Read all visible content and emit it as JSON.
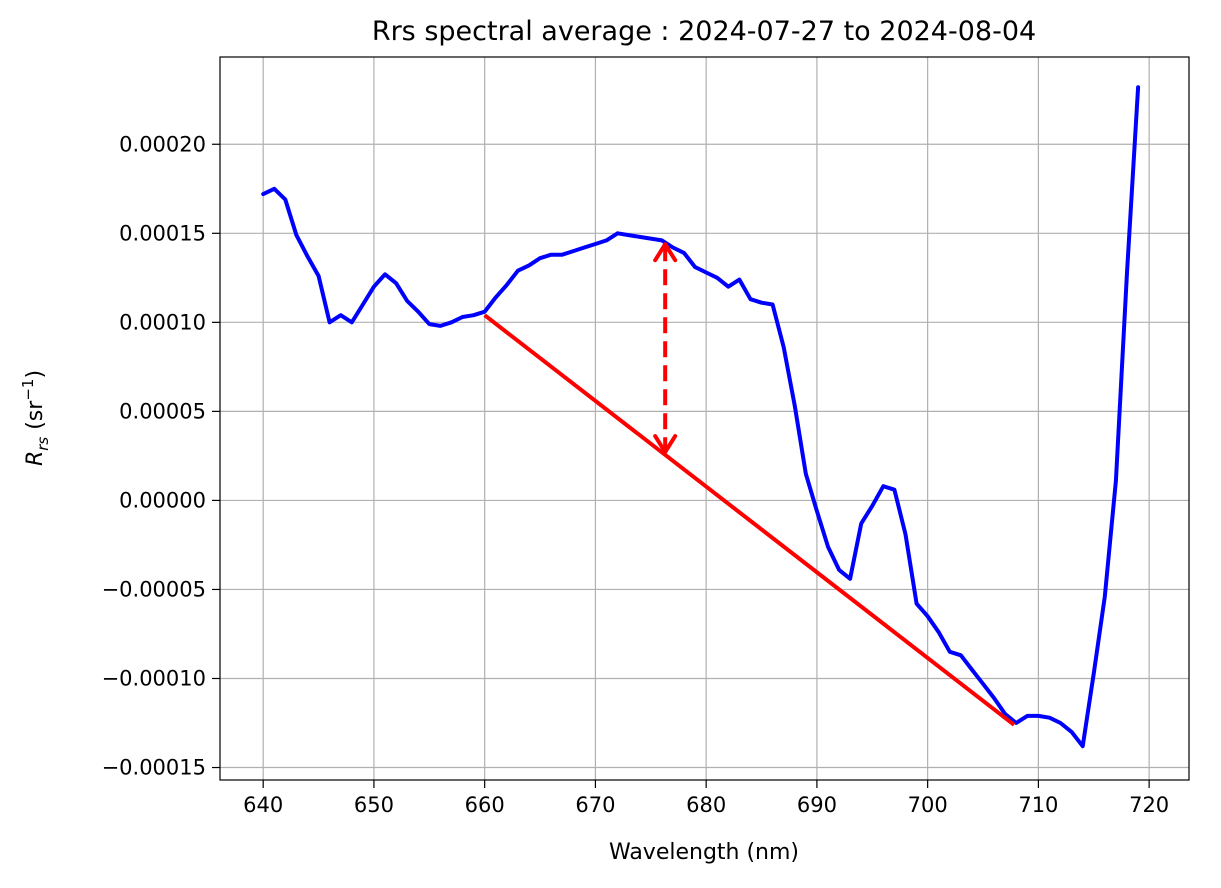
{
  "chart_data": {
    "type": "line",
    "title": "Rrs spectral average : 2024-07-27 to 2024-08-04",
    "xlabel": "Wavelength (nm)",
    "ylabel": {
      "main": "R",
      "sub": "rs",
      "unit_open": " (sr",
      "unit_exp": "−1",
      "unit_close": ")"
    },
    "xlim": [
      636.1,
      723.6
    ],
    "ylim": [
      -0.000157,
      0.000249
    ],
    "x_ticks": [
      640,
      650,
      660,
      670,
      680,
      690,
      700,
      710,
      720
    ],
    "x_tick_labels": [
      "640",
      "650",
      "660",
      "670",
      "680",
      "690",
      "700",
      "710",
      "720"
    ],
    "y_ticks": [
      0.0002,
      0.00015,
      0.0001,
      5e-05,
      0.0,
      -5e-05,
      -0.0001,
      -0.00015
    ],
    "y_tick_labels": [
      "0.00020",
      "0.00015",
      "0.00010",
      "0.00005",
      "0.00000",
      "−0.00005",
      "−0.00010",
      "−0.00015"
    ],
    "grid": true,
    "series": [
      {
        "color": "#0000ff",
        "x": [
          640,
          641,
          642,
          643,
          644,
          645,
          646,
          647,
          648,
          649,
          650,
          651,
          652,
          653,
          654,
          655,
          656,
          657,
          658,
          659,
          660,
          661,
          662,
          663,
          664,
          665,
          666,
          667,
          668,
          669,
          670,
          671,
          672,
          673,
          674,
          675,
          676,
          677,
          678,
          679,
          680,
          681,
          682,
          683,
          684,
          685,
          686,
          687,
          688,
          689,
          690,
          691,
          692,
          693,
          694,
          695,
          696,
          697,
          698,
          699,
          700,
          701,
          702,
          703,
          704,
          705,
          706,
          707,
          708,
          709,
          710,
          711,
          712,
          713,
          714,
          715,
          716,
          717,
          718,
          719
        ],
        "y": [
          0.000172,
          0.000175,
          0.000169,
          0.000149,
          0.000137,
          0.000126,
          0.0001,
          0.000104,
          0.0001,
          0.00011,
          0.00012,
          0.000127,
          0.000122,
          0.000112,
          0.000106,
          9.9e-05,
          9.8e-05,
          0.0001,
          0.000103,
          0.000104,
          0.000106,
          0.000114,
          0.000121,
          0.000129,
          0.000132,
          0.000136,
          0.000138,
          0.000138,
          0.00014,
          0.000142,
          0.000144,
          0.000146,
          0.00015,
          0.000149,
          0.000148,
          0.000147,
          0.000146,
          0.000142,
          0.000139,
          0.000131,
          0.000128,
          0.000125,
          0.00012,
          0.000124,
          0.000113,
          0.000111,
          0.00011,
          8.6e-05,
          5.3e-05,
          1.5e-05,
          -6e-06,
          -2.6e-05,
          -3.9e-05,
          -4.4e-05,
          -1.3e-05,
          -3e-06,
          8e-06,
          6e-06,
          -1.9e-05,
          -5.8e-05,
          -6.5e-05,
          -7.4e-05,
          -8.5e-05,
          -8.7e-05,
          -9.5e-05,
          -0.000103,
          -0.000111,
          -0.00012,
          -0.000125,
          -0.000121,
          -0.000121,
          -0.000122,
          -0.000125,
          -0.00013,
          -0.000138,
          -9.7e-05,
          -5.4e-05,
          1.1e-05,
          0.000128,
          0.000232
        ]
      }
    ],
    "annotations": [
      {
        "kind": "baseline-line",
        "color": "#ff0000",
        "x": [
          660,
          707.8
        ],
        "y": [
          0.000104,
          -0.000126
        ]
      },
      {
        "kind": "double-arrow-dashed",
        "color": "#ff0000",
        "x": 676.3,
        "y_top": 0.000145,
        "y_bottom": 2.6e-05
      }
    ]
  }
}
